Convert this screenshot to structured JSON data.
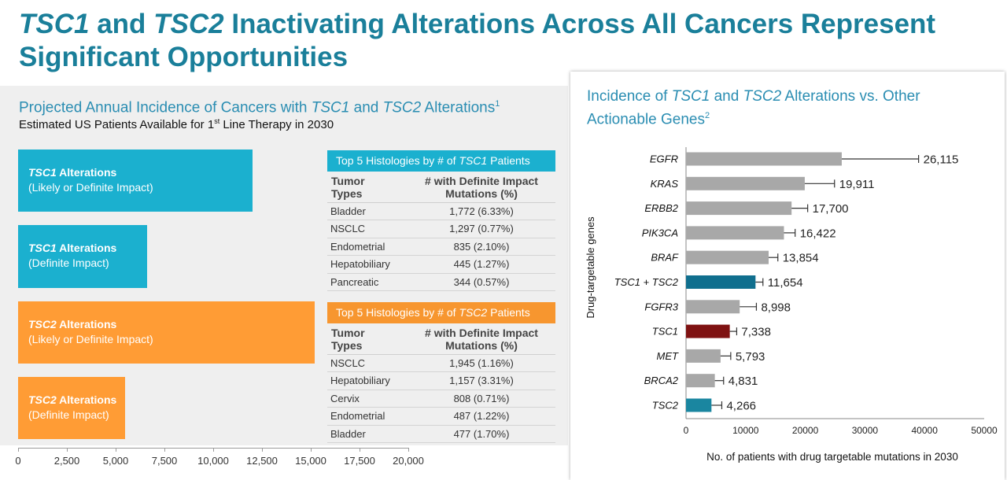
{
  "title": {
    "gene1": "TSC1",
    "and": " and ",
    "gene2": "TSC2",
    "rest": " Inactivating Alterations Across All Cancers Represent Significant Opportunities"
  },
  "left": {
    "title_a": "Projected Annual Incidence of Cancers with ",
    "gene1": "TSC1",
    "and": " and ",
    "gene2": "TSC2",
    "title_b": " Alterations",
    "title_sup": "1",
    "sub_a": "Estimated US Patients Available for 1",
    "sub_sup": "st",
    "sub_b": " Line Therapy in 2030",
    "colors": {
      "teal": "#1bb0cf",
      "orange": "#ff9c35",
      "tbl_orange": "#f7962f"
    }
  },
  "tables": [
    {
      "head_a": "Top 5 Histologies by # of ",
      "head_gene": "TSC1",
      "head_b": " Patients",
      "col1": "Tumor Types",
      "col2": "# with Definite Impact Mutations (%)",
      "rows": [
        {
          "type": "Bladder",
          "val": "1,772 (6.33%)"
        },
        {
          "type": "NSCLC",
          "val": "1,297 (0.77%)"
        },
        {
          "type": "Endometrial",
          "val": "835 (2.10%)"
        },
        {
          "type": "Hepatobiliary",
          "val": "445 (1.27%)"
        },
        {
          "type": "Pancreatic",
          "val": "344 (0.57%)"
        }
      ]
    },
    {
      "head_a": "Top 5 Histologies by # of ",
      "head_gene": "TSC2",
      "head_b": " Patients",
      "col1": "Tumor Types",
      "col2": "# with Definite Impact Mutations (%)",
      "rows": [
        {
          "type": "NSCLC",
          "val": "1,945 (1.16%)"
        },
        {
          "type": "Hepatobiliary",
          "val": "1,157 (3.31%)"
        },
        {
          "type": "Cervix",
          "val": "808 (0.71%)"
        },
        {
          "type": "Endometrial",
          "val": "487 (1.22%)"
        },
        {
          "type": "Bladder",
          "val": "477 (1.70%)"
        }
      ]
    }
  ],
  "right": {
    "title_a": "Incidence of ",
    "gene1": "TSC1",
    "and": " and ",
    "gene2": "TSC2",
    "title_b": " Alterations vs. Other Actionable Genes",
    "title_sup": "2"
  },
  "chart_data": [
    {
      "type": "bar",
      "orientation": "horizontal",
      "series": [
        {
          "gene": "TSC1",
          "label_rest": "Alterations",
          "sub": "(Likely or Definite Impact)",
          "value": 12000,
          "color": "#1bb0cf"
        },
        {
          "gene": "TSC1",
          "label_rest": "Alterations",
          "sub": "(Definite Impact)",
          "value": 6600,
          "color": "#1bb0cf"
        },
        {
          "gene": "TSC2",
          "label_rest": "Alterations",
          "sub": "(Likely or Definite Impact)",
          "value": 15200,
          "color": "#ff9c35"
        },
        {
          "gene": "TSC2",
          "label_rest": "Alterations",
          "sub": "(Definite Impact)",
          "value": 5500,
          "color": "#ff9c35"
        }
      ],
      "xlim": [
        0,
        20000
      ],
      "xticks": [
        "0",
        "2,500",
        "5,000",
        "7,500",
        "10,000",
        "12,500",
        "15,000",
        "17,500",
        "20,000"
      ],
      "grid": false
    },
    {
      "type": "bar",
      "orientation": "horizontal",
      "categories": [
        "EGFR",
        "KRAS",
        "ERBB2",
        "PIK3CA",
        "BRAF",
        "TSC1 + TSC2",
        "FGFR3",
        "TSC1",
        "MET",
        "BRCA2",
        "TSC2"
      ],
      "values": [
        26115,
        19911,
        17700,
        16422,
        13854,
        11654,
        8998,
        7338,
        5793,
        4831,
        4266
      ],
      "value_labels": [
        "26,115",
        "19,911",
        "17,700",
        "16,422",
        "13,854",
        "11,654",
        "8,998",
        "7,338",
        "5,793",
        "4,831",
        "4,266"
      ],
      "error_upper": [
        39000,
        24900,
        20400,
        18300,
        15400,
        12900,
        11800,
        8500,
        7500,
        6300,
        6000
      ],
      "colors": [
        "#a8a8a8",
        "#a8a8a8",
        "#a8a8a8",
        "#a8a8a8",
        "#a8a8a8",
        "#106f8e",
        "#a8a8a8",
        "#7f1212",
        "#a8a8a8",
        "#a8a8a8",
        "#1a86a0"
      ],
      "xlim": [
        0,
        50000
      ],
      "xticks": [
        "0",
        "10000",
        "20000",
        "30000",
        "40000",
        "50000"
      ],
      "xlabel": "No. of patients with drug targetable mutations in 2030",
      "ylabel": "Drug-targetable genes",
      "grid": false
    }
  ]
}
